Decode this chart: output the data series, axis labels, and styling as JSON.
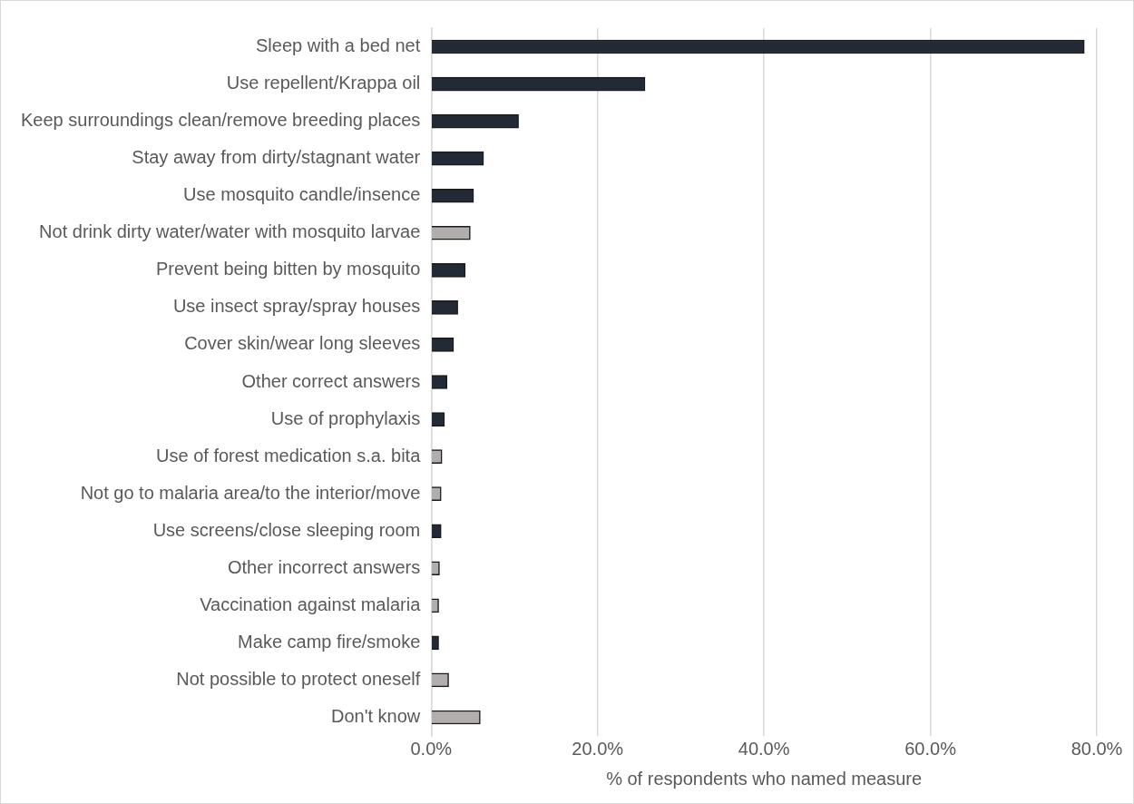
{
  "chart_data": {
    "type": "bar",
    "orientation": "horizontal",
    "categories": [
      "Sleep with a bed net",
      "Use repellent/Krappa oil",
      "Keep surroundings clean/remove breeding places",
      "Stay away from dirty/stagnant water",
      "Use mosquito candle/insence",
      "Not drink dirty water/water with mosquito larvae",
      "Prevent being bitten by mosquito",
      "Use insect spray/spray houses",
      "Cover skin/wear long sleeves",
      "Other correct answers",
      "Use of prophylaxis",
      "Use of forest medication s.a. bita",
      "Not go to malaria area/to the interior/move",
      "Use screens/close sleeping room",
      "Other incorrect answers",
      "Vaccination against malaria",
      "Make camp fire/smoke",
      "Not possible to protect oneself",
      "Don't know"
    ],
    "values": [
      78.5,
      25.7,
      10.5,
      6.3,
      5.1,
      4.7,
      4.1,
      3.2,
      2.7,
      1.9,
      1.6,
      1.3,
      1.2,
      1.2,
      1.0,
      0.9,
      0.9,
      2.1,
      5.9
    ],
    "colors": [
      "#222a36",
      "#222a36",
      "#222a36",
      "#222a36",
      "#222a36",
      "#b3aeae",
      "#222a36",
      "#222a36",
      "#222a36",
      "#222a36",
      "#222a36",
      "#b3aeae",
      "#b3aeae",
      "#222a36",
      "#b3aeae",
      "#b3aeae",
      "#222a36",
      "#b3aeae",
      "#b3aeae"
    ],
    "xlabel": "% of respondents who named measure",
    "xlim": [
      0,
      80
    ],
    "xticks": [
      {
        "value": 0,
        "label": "0.0%"
      },
      {
        "value": 20,
        "label": "20.0%"
      },
      {
        "value": 40,
        "label": "40.0%"
      },
      {
        "value": 60,
        "label": "60.0%"
      },
      {
        "value": 80,
        "label": "80.0%"
      }
    ],
    "grid": "x",
    "legend": false
  }
}
